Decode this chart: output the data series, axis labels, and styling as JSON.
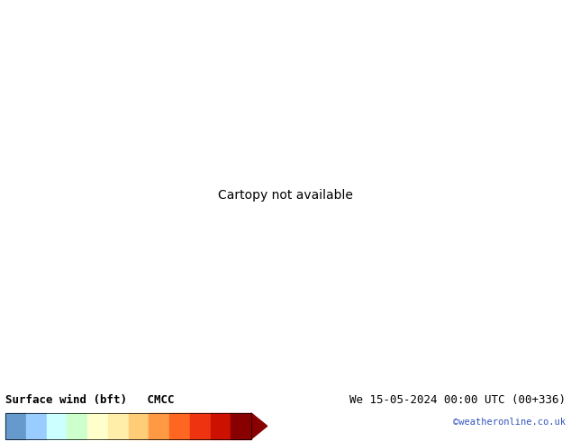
{
  "title_left": "Surface wind (bft)   CMCC",
  "title_right": "We 15-05-2024 00:00 UTC (00+336)",
  "credit": "©weatheronline.co.uk",
  "colorbar_values": [
    1,
    2,
    3,
    4,
    5,
    6,
    7,
    8,
    9,
    10,
    11,
    12
  ],
  "colorbar_colors": [
    "#6699cc",
    "#99ccff",
    "#ccffff",
    "#ccffcc",
    "#ffffcc",
    "#ffeeaa",
    "#ffcc77",
    "#ff9944",
    "#ff6622",
    "#ee3311",
    "#cc1100",
    "#880000"
  ],
  "ocean_color": "#7badd4",
  "land_color": "#c8b48a",
  "border_color": "#a09070",
  "figsize": [
    6.34,
    4.9
  ],
  "dpi": 100,
  "extent": [
    20,
    120,
    -20,
    55
  ],
  "colorbar_label_fontsize": 7,
  "text_fontsize": 9,
  "credit_fontsize": 7.5,
  "credit_color": "#3355bb"
}
